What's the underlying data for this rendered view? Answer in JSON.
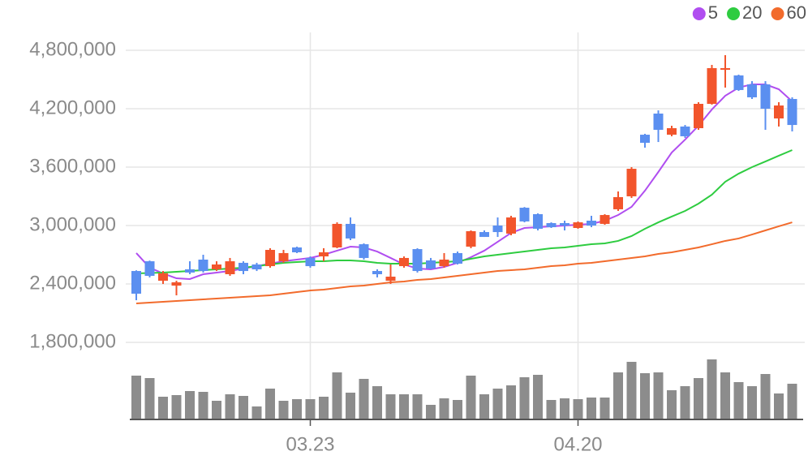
{
  "chart_data": {
    "type": "candlestick",
    "categories": [
      null,
      null,
      null,
      null,
      null,
      null,
      null,
      null,
      null,
      null,
      null,
      null,
      null,
      "03.23",
      null,
      null,
      null,
      null,
      null,
      null,
      null,
      null,
      null,
      null,
      null,
      null,
      null,
      null,
      null,
      null,
      null,
      null,
      null,
      "04.20",
      null,
      null,
      null,
      null,
      null,
      null,
      null,
      null,
      null,
      null,
      null,
      null,
      null,
      null,
      null,
      null
    ],
    "open": [
      2533000,
      2633000,
      2433000,
      2383000,
      2550000,
      2650000,
      2550000,
      2500000,
      2617000,
      2600000,
      2583000,
      2633000,
      2775000,
      2667000,
      2683000,
      2775000,
      3017000,
      2808000,
      2533000,
      2433000,
      2583000,
      2758000,
      2642000,
      2583000,
      2717000,
      2783000,
      2933000,
      3000000,
      2917000,
      3183000,
      3117000,
      3025000,
      3025000,
      2975000,
      3050000,
      3017000,
      3167000,
      3300000,
      3933000,
      4150000,
      3933000,
      4017000,
      4000000,
      4250000,
      4600000,
      4542000,
      4450000,
      4450000,
      4100000,
      4300000
    ],
    "high": [
      2540000,
      2640000,
      2533000,
      2433000,
      2633000,
      2700000,
      2633000,
      2667000,
      2633000,
      2617000,
      2767000,
      2750000,
      2783000,
      2683000,
      2767000,
      3033000,
      3083000,
      2817000,
      2550000,
      2600000,
      2683000,
      2767000,
      2667000,
      2717000,
      2733000,
      2950000,
      2950000,
      3083000,
      3100000,
      3190000,
      3125000,
      3033000,
      3050000,
      3042000,
      3100000,
      3117000,
      3350000,
      3600000,
      3942000,
      4183000,
      4025000,
      4033000,
      4267000,
      4650000,
      4750000,
      4550000,
      4483000,
      4483000,
      4267000,
      4317000
    ],
    "low": [
      2233000,
      2467000,
      2400000,
      2283000,
      2500000,
      2517000,
      2533000,
      2483000,
      2500000,
      2533000,
      2567000,
      2617000,
      2717000,
      2567000,
      2633000,
      2767000,
      2850000,
      2650000,
      2467000,
      2400000,
      2567000,
      2517000,
      2550000,
      2567000,
      2600000,
      2767000,
      2883000,
      2883000,
      2900000,
      3033000,
      2950000,
      2975000,
      2950000,
      2967000,
      2983000,
      3008000,
      3150000,
      3283000,
      3800000,
      3858000,
      3917000,
      3900000,
      3983000,
      4242000,
      4417000,
      4383000,
      4300000,
      3983000,
      4017000,
      3967000
    ],
    "close": [
      2300000,
      2483000,
      2510000,
      2417000,
      2517000,
      2533000,
      2600000,
      2633000,
      2533000,
      2550000,
      2750000,
      2717000,
      2725000,
      2583000,
      2725000,
      3017000,
      2867000,
      2667000,
      2500000,
      2475000,
      2667000,
      2533000,
      2558000,
      2650000,
      2608000,
      2942000,
      2883000,
      2933000,
      3083000,
      3042000,
      2967000,
      2983000,
      3000000,
      3033000,
      3000000,
      3108000,
      3292000,
      3583000,
      3850000,
      3983000,
      4000000,
      3917000,
      4250000,
      4617000,
      4617000,
      4392000,
      4317000,
      4200000,
      4233000,
      4033000
    ],
    "up_color": "#f2552c",
    "down_color": "#5b8ff0",
    "series": [
      {
        "name": "5",
        "color": "#b04ef0",
        "values": [
          2717000,
          2567000,
          2508000,
          2458000,
          2450000,
          2500000,
          2517000,
          2533000,
          2558000,
          2583000,
          2608000,
          2633000,
          2650000,
          2667000,
          2700000,
          2742000,
          2783000,
          2775000,
          2733000,
          2667000,
          2600000,
          2558000,
          2550000,
          2575000,
          2617000,
          2675000,
          2742000,
          2833000,
          2925000,
          2975000,
          2983000,
          2992000,
          3000000,
          3008000,
          3017000,
          3050000,
          3108000,
          3192000,
          3358000,
          3550000,
          3750000,
          3883000,
          4025000,
          4192000,
          4333000,
          4417000,
          4450000,
          4450000,
          4400000,
          4275000
        ]
      },
      {
        "name": "20",
        "color": "#2ecc40",
        "values": [
          2508000,
          2512000,
          2517000,
          2525000,
          2533000,
          2542000,
          2550000,
          2558000,
          2567000,
          2583000,
          2600000,
          2617000,
          2625000,
          2633000,
          2633000,
          2642000,
          2642000,
          2633000,
          2617000,
          2608000,
          2608000,
          2608000,
          2617000,
          2625000,
          2633000,
          2658000,
          2683000,
          2700000,
          2717000,
          2733000,
          2750000,
          2767000,
          2775000,
          2792000,
          2808000,
          2817000,
          2842000,
          2892000,
          2967000,
          3033000,
          3092000,
          3150000,
          3225000,
          3317000,
          3450000,
          3533000,
          3600000,
          3658000,
          3717000,
          3775000
        ]
      },
      {
        "name": "60",
        "color": "#f26b2c",
        "values": [
          2200000,
          2208000,
          2217000,
          2225000,
          2233000,
          2242000,
          2250000,
          2258000,
          2267000,
          2275000,
          2283000,
          2300000,
          2317000,
          2333000,
          2342000,
          2358000,
          2375000,
          2383000,
          2400000,
          2417000,
          2425000,
          2442000,
          2450000,
          2467000,
          2483000,
          2500000,
          2517000,
          2533000,
          2542000,
          2550000,
          2567000,
          2583000,
          2592000,
          2608000,
          2617000,
          2633000,
          2650000,
          2667000,
          2683000,
          2708000,
          2725000,
          2750000,
          2775000,
          2808000,
          2842000,
          2867000,
          2908000,
          2950000,
          2992000,
          3033000
        ]
      }
    ],
    "volume": {
      "color": "#8c8c8c",
      "lim": [
        0,
        80
      ],
      "values": [
        54,
        51,
        28,
        30,
        35,
        34,
        23,
        31,
        29,
        16,
        38,
        23,
        25,
        25,
        28,
        58,
        33,
        50,
        41,
        31,
        31,
        31,
        18,
        26,
        24,
        54,
        31,
        38,
        42,
        52,
        55,
        24,
        26,
        25,
        27,
        27,
        58,
        71,
        57,
        58,
        36,
        41,
        51,
        74,
        58,
        46,
        41,
        56,
        32,
        44
      ]
    },
    "ylim": [
      1800000,
      4800000
    ],
    "yticks": [
      {
        "value": 1800000,
        "label": "1,800,000"
      },
      {
        "value": 2400000,
        "label": "2,400,000"
      },
      {
        "value": 3000000,
        "label": "3,000,000"
      },
      {
        "value": 3600000,
        "label": "3,600,000"
      },
      {
        "value": 4200000,
        "label": "4,200,000"
      },
      {
        "value": 4800000,
        "label": "4,800,000"
      }
    ],
    "grid": true,
    "legend": "top-right"
  }
}
